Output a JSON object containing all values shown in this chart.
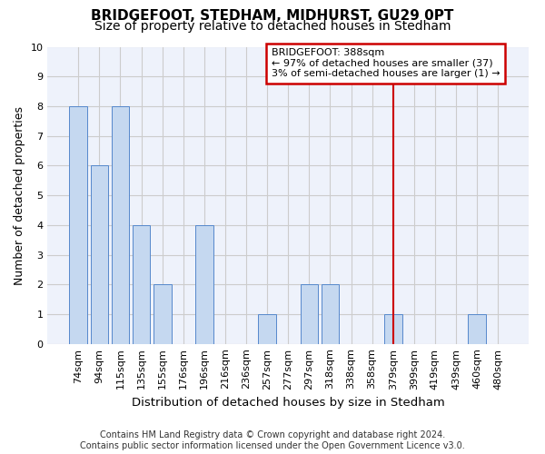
{
  "title": "BRIDGEFOOT, STEDHAM, MIDHURST, GU29 0PT",
  "subtitle": "Size of property relative to detached houses in Stedham",
  "xlabel": "Distribution of detached houses by size in Stedham",
  "ylabel": "Number of detached properties",
  "categories": [
    "74sqm",
    "94sqm",
    "115sqm",
    "135sqm",
    "155sqm",
    "176sqm",
    "196sqm",
    "216sqm",
    "236sqm",
    "257sqm",
    "277sqm",
    "297sqm",
    "318sqm",
    "338sqm",
    "358sqm",
    "379sqm",
    "399sqm",
    "419sqm",
    "439sqm",
    "460sqm",
    "480sqm"
  ],
  "values": [
    8,
    6,
    8,
    4,
    2,
    0,
    4,
    0,
    0,
    1,
    0,
    2,
    2,
    0,
    0,
    1,
    0,
    0,
    0,
    1,
    0
  ],
  "bar_color": "#c5d8f0",
  "bar_edge_color": "#5588cc",
  "vline_x_index": 15,
  "vline_color": "#cc0000",
  "annotation_text": "BRIDGEFOOT: 388sqm\n← 97% of detached houses are smaller (37)\n3% of semi-detached houses are larger (1) →",
  "annotation_box_color": "#cc0000",
  "ylim": [
    0,
    10
  ],
  "yticks": [
    0,
    1,
    2,
    3,
    4,
    5,
    6,
    7,
    8,
    9,
    10
  ],
  "grid_color": "#cccccc",
  "bg_color": "#eef2fb",
  "footer": "Contains HM Land Registry data © Crown copyright and database right 2024.\nContains public sector information licensed under the Open Government Licence v3.0.",
  "title_fontsize": 11,
  "subtitle_fontsize": 10,
  "xlabel_fontsize": 9.5,
  "ylabel_fontsize": 9,
  "tick_fontsize": 8,
  "footer_fontsize": 7,
  "annotation_fontsize": 8
}
